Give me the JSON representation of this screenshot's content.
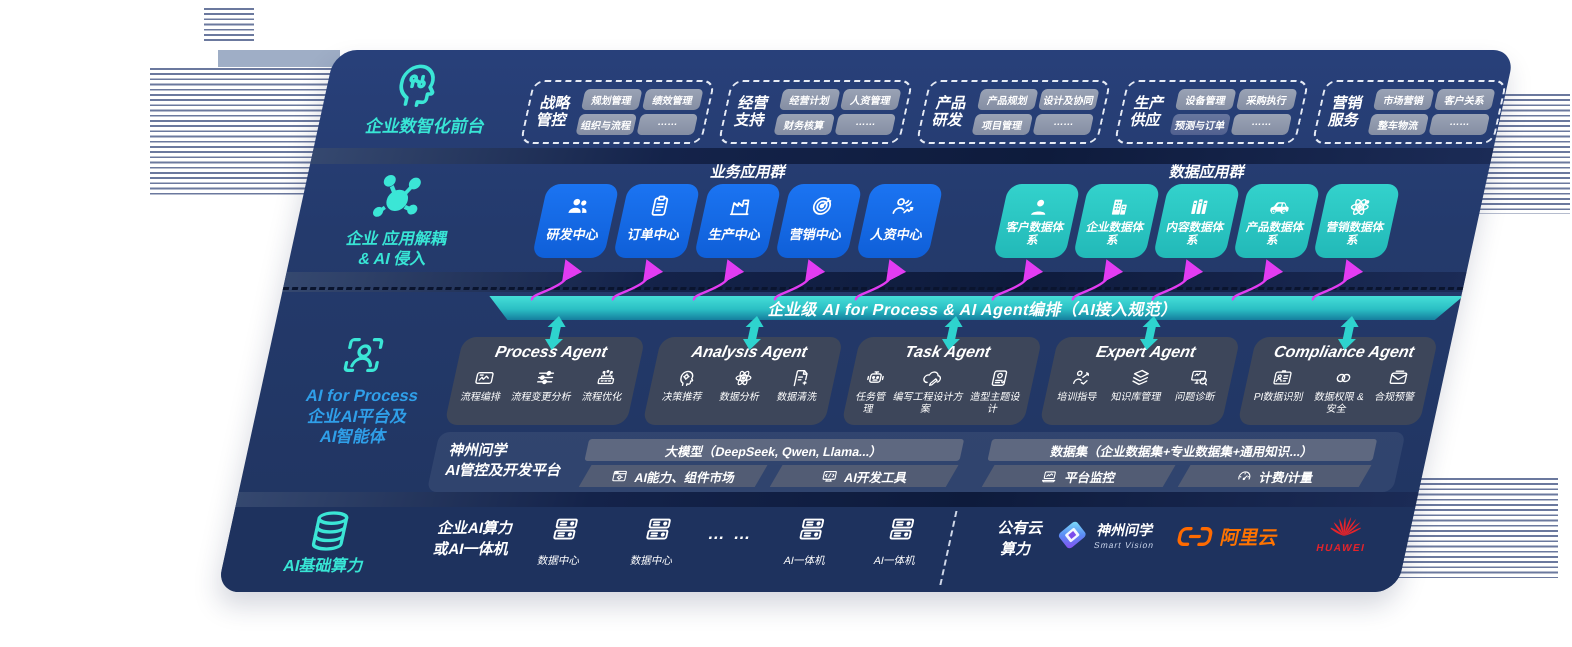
{
  "colors": {
    "panel_navy": "#243A6C",
    "tile_blue": "#1568E8",
    "tile_teal": "#2BC9C5",
    "banner_teal_top": "#3ED6D2",
    "banner_teal_bottom": "#157E9E",
    "arrow_magenta": "#E23CF2",
    "label_teal": "#38E5D5",
    "label_blue": "#2F9FE9",
    "aliyun_orange": "#FF6A00",
    "huawei_red": "#E6232A"
  },
  "front_layer": {
    "label": "企业数智化前台",
    "icon": "brain",
    "groups": [
      {
        "name": "战略管控",
        "chips": [
          "规划管理",
          "绩效管理",
          "组织与流程",
          "……"
        ]
      },
      {
        "name": "经营支持",
        "chips": [
          "经营计划",
          "人资管理",
          "财务核算",
          "……"
        ]
      },
      {
        "name": "产品研发",
        "chips": [
          "产品规划",
          "设计及协同",
          "项目管理",
          "……"
        ]
      },
      {
        "name": "生产供应",
        "chips": [
          "设备管理",
          "采购执行",
          "预测与订单",
          "……"
        ],
        "accent_chip": "预测与订单"
      },
      {
        "name": "营销服务",
        "chips": [
          "市场营销",
          "客户关系",
          "整车物流",
          "……"
        ]
      }
    ]
  },
  "decouple_layer": {
    "icon": "molecule",
    "label_line1": "企业 应用解耦",
    "label_line2": "& AI 侵入",
    "business_group_title": "业务应用群",
    "business_tiles": [
      {
        "label": "研发中心",
        "icon": "team"
      },
      {
        "label": "订单中心",
        "icon": "clipboard"
      },
      {
        "label": "生产中心",
        "icon": "factory"
      },
      {
        "label": "营销中心",
        "icon": "target"
      },
      {
        "label": "人资中心",
        "icon": "hr"
      }
    ],
    "data_group_title": "数据应用群",
    "data_tiles": [
      {
        "label": "客户数据体系",
        "icon": "person-solid"
      },
      {
        "label": "企业数据体系",
        "icon": "building"
      },
      {
        "label": "内容数据体系",
        "icon": "books"
      },
      {
        "label": "产品数据体系",
        "icon": "car"
      },
      {
        "label": "营销数据体系",
        "icon": "atom-solid"
      }
    ]
  },
  "ai_layer": {
    "icon": "person-scan",
    "label_line1": "AI for Process",
    "label_line2": "企业AI平台及",
    "label_line3": "AI智能体",
    "banner": "企业级 AI for Process & AI Agent编排（AI接入规范）",
    "agents": [
      {
        "title": "Process Agent",
        "items": [
          {
            "label": "流程编排",
            "icon": "workflow"
          },
          {
            "label": "流程变更分析",
            "icon": "sliders"
          },
          {
            "label": "流程优化",
            "icon": "machine"
          }
        ]
      },
      {
        "title": "Analysis Agent",
        "items": [
          {
            "label": "决策推荐",
            "icon": "head-gear"
          },
          {
            "label": "数据分析",
            "icon": "atom"
          },
          {
            "label": "数据清洗",
            "icon": "doc-clean"
          }
        ]
      },
      {
        "title": "Task Agent",
        "items": [
          {
            "label": "任务管理",
            "icon": "bot"
          },
          {
            "label": "编写工程设计方案",
            "icon": "cloud-pen"
          },
          {
            "label": "造型主题设计",
            "icon": "board"
          }
        ]
      },
      {
        "title": "Expert Agent",
        "items": [
          {
            "label": "培训指导",
            "icon": "training"
          },
          {
            "label": "知识库管理",
            "icon": "layers"
          },
          {
            "label": "问题诊断",
            "icon": "diagnose"
          }
        ]
      },
      {
        "title": "Compliance Agent",
        "items": [
          {
            "label": "PI数据识别",
            "icon": "id-card"
          },
          {
            "label": "数据权限 &\n安全",
            "icon": "rings"
          },
          {
            "label": "合规预警",
            "icon": "alert"
          }
        ]
      }
    ]
  },
  "platform": {
    "label_line1": "神州问学",
    "label_line2": "AI管控及开发平台",
    "model_bar": "大模型（DeepSeek, Qwen, Llama...）",
    "left_cells": [
      {
        "label": "AI能力、组件市场",
        "icon": "component"
      },
      {
        "label": "AI开发工具",
        "icon": "devtools"
      }
    ],
    "dataset_bar": "数据集（企业数据集+专业数据集+通用知识...）",
    "right_cells": [
      {
        "label": "平台监控",
        "icon": "laptop"
      },
      {
        "label": "计费/计量",
        "icon": "gauge"
      }
    ]
  },
  "compute_layer": {
    "icon": "database",
    "label": "AI基础算力",
    "cluster_label_line1": "企业AI算力",
    "cluster_label_line2": "或AI一体机",
    "nodes": [
      {
        "type": "server",
        "label": "数据中心"
      },
      {
        "type": "server",
        "label": "数据中心"
      },
      {
        "type": "dots",
        "label": "… …"
      },
      {
        "type": "server",
        "label": "AI一体机"
      },
      {
        "type": "server",
        "label": "AI一体机"
      }
    ],
    "public_cloud_line1": "公有云",
    "public_cloud_line2": "算力",
    "vendors": [
      {
        "name": "神州问学",
        "sub": "Smart Vision",
        "icon": "sv-logo"
      },
      {
        "name": "阿里云",
        "icon": "ali-logo"
      },
      {
        "name": "HUAWEI",
        "icon": "hw-logo"
      }
    ]
  }
}
